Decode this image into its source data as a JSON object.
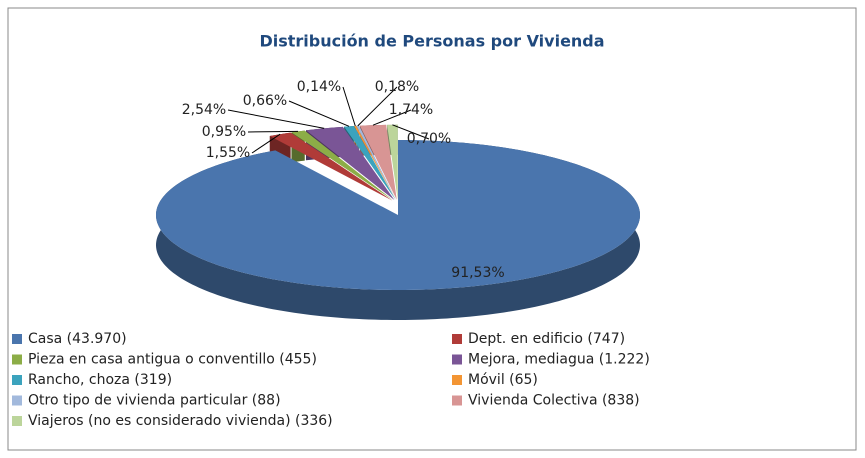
{
  "chart_data": {
    "type": "pie",
    "title": "Distribución de Personas por Vivienda",
    "categories": [
      "Casa (43.970)",
      "Dept. en edificio (747)",
      "Pieza en casa antigua o conventillo (455)",
      "Mejora, mediagua (1.222)",
      "Rancho, choza (319)",
      "Móvil (65)",
      "Otro tipo de vivienda particular (88)",
      "Vivienda Colectiva (838)",
      "Viajeros (no es considerado vivienda) (336)"
    ],
    "values": [
      91.53,
      1.55,
      0.95,
      2.54,
      0.66,
      0.14,
      0.18,
      1.74,
      0.7
    ],
    "value_labels": [
      "91,53%",
      "1,55%",
      "0,95%",
      "2,54%",
      "0,66%",
      "0,14%",
      "0,18%",
      "1,74%",
      "0,70%"
    ],
    "colors": [
      "#4a75ad",
      "#b03b38",
      "#8cad47",
      "#7a5596",
      "#3ba3bd",
      "#f39533",
      "#a2b9dc",
      "#d89594",
      "#bcd59b"
    ],
    "legend": "bottom"
  }
}
